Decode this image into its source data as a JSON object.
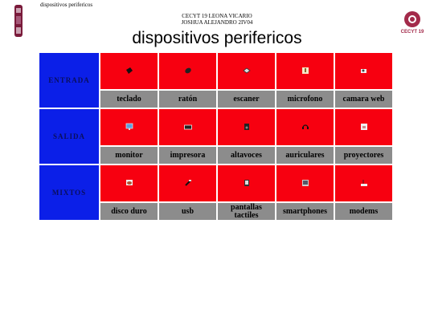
{
  "tab_title": "dispositivos perifericos",
  "school": {
    "line1": "CECYT 19 LEONA VICARIO",
    "line2": "JOSHUA ALEJANDRO 2IV04"
  },
  "heading": "dispositivos perifericos",
  "logos": {
    "right_text": "CECYT 19"
  },
  "colors": {
    "category_bg": "#0b1fe8",
    "icon_bg": "#f70010",
    "label_bg": "#8c8c8c"
  },
  "categories": [
    {
      "name": "ENTRADA",
      "devices": [
        {
          "label": "teclado",
          "icon": "keyboard-icon"
        },
        {
          "label": "ratón",
          "icon": "mouse-icon"
        },
        {
          "label": "escaner",
          "icon": "scanner-icon"
        },
        {
          "label": "microfono",
          "icon": "microphone-icon"
        },
        {
          "label": "camara web",
          "icon": "webcam-icon"
        }
      ]
    },
    {
      "name": "SALIDA",
      "devices": [
        {
          "label": "monitor",
          "icon": "monitor-icon"
        },
        {
          "label": "impresora",
          "icon": "printer-icon"
        },
        {
          "label": "altavoces",
          "icon": "speaker-icon"
        },
        {
          "label": "auriculares",
          "icon": "headphones-icon"
        },
        {
          "label": "proyectores",
          "icon": "projector-icon"
        }
      ]
    },
    {
      "name": "MIXTOS",
      "devices": [
        {
          "label": "disco duro",
          "icon": "hard-drive-icon"
        },
        {
          "label": "usb",
          "icon": "usb-icon"
        },
        {
          "label": "pantallas tactiles",
          "icon": "touchscreen-icon"
        },
        {
          "label": "smartphones",
          "icon": "smartphone-icon"
        },
        {
          "label": "modems",
          "icon": "modem-icon"
        }
      ]
    }
  ]
}
